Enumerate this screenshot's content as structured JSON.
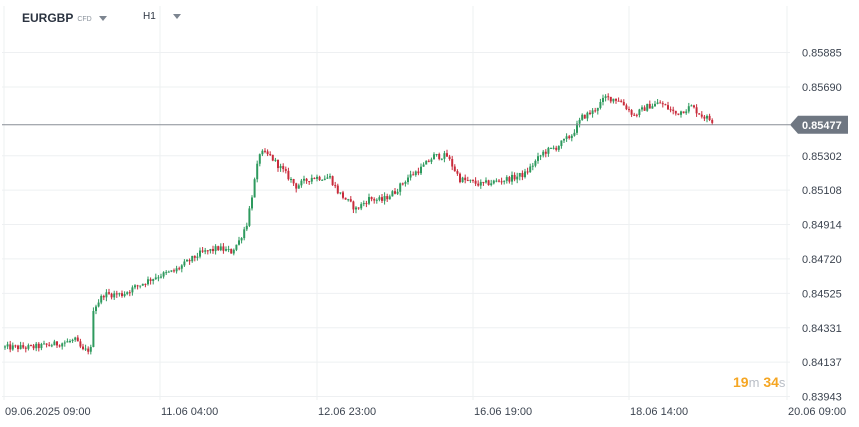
{
  "toolbar": {
    "symbol": "EURGBP",
    "symbol_type": "CFD",
    "timeframe": "H1"
  },
  "countdown": {
    "minutes": "19",
    "minutes_unit": "m",
    "seconds": "34",
    "seconds_unit": "s"
  },
  "colors": {
    "up": "#2e9a5e",
    "down": "#c92b3b",
    "grid": "#eef0f2",
    "price_line": "#888e96",
    "price_tag": "#6f7782",
    "countdown": "#f5a623"
  },
  "chart_data": {
    "type": "candlestick",
    "symbol": "EURGBP",
    "timeframe": "H1",
    "last_price": "0.85477",
    "y_ticks": [
      "0.85885",
      "0.85690",
      "0.85302",
      "0.85108",
      "0.84914",
      "0.84720",
      "0.84525",
      "0.84331",
      "0.84137",
      "0.83943"
    ],
    "y_range": [
      0.83943,
      0.85885
    ],
    "x_ticks": [
      "09.06.2025  09:00",
      "11.06  04:00",
      "12.06  23:00",
      "16.06  19:00",
      "18.06  14:00",
      "20.06  09:00"
    ],
    "grid": true,
    "anchors": [
      [
        0,
        0.8422
      ],
      [
        10,
        0.8422
      ],
      [
        20,
        0.8424
      ],
      [
        27,
        0.8426
      ],
      [
        30,
        0.842
      ],
      [
        33,
        0.8421
      ],
      [
        34,
        0.8444
      ],
      [
        38,
        0.8452
      ],
      [
        45,
        0.8452
      ],
      [
        50,
        0.8456
      ],
      [
        58,
        0.8462
      ],
      [
        65,
        0.8465
      ],
      [
        75,
        0.8475
      ],
      [
        82,
        0.8478
      ],
      [
        87,
        0.8476
      ],
      [
        90,
        0.8482
      ],
      [
        93,
        0.8492
      ],
      [
        98,
        0.8532
      ],
      [
        102,
        0.853
      ],
      [
        108,
        0.852
      ],
      [
        112,
        0.8513
      ],
      [
        118,
        0.8518
      ],
      [
        125,
        0.8518
      ],
      [
        128,
        0.851
      ],
      [
        135,
        0.85
      ],
      [
        140,
        0.8506
      ],
      [
        145,
        0.8505
      ],
      [
        150,
        0.851
      ],
      [
        155,
        0.8518
      ],
      [
        160,
        0.8523
      ],
      [
        165,
        0.853
      ],
      [
        170,
        0.853
      ],
      [
        175,
        0.8517
      ],
      [
        183,
        0.8514
      ],
      [
        190,
        0.8516
      ],
      [
        196,
        0.8518
      ],
      [
        200,
        0.852
      ],
      [
        207,
        0.8532
      ],
      [
        212,
        0.8535
      ],
      [
        218,
        0.8542
      ],
      [
        222,
        0.8552
      ],
      [
        226,
        0.8555
      ],
      [
        231,
        0.8563
      ],
      [
        236,
        0.8562
      ],
      [
        242,
        0.8553
      ],
      [
        247,
        0.8558
      ],
      [
        252,
        0.856
      ],
      [
        258,
        0.8554
      ],
      [
        264,
        0.8558
      ],
      [
        268,
        0.8553
      ],
      [
        272,
        0.855
      ]
    ],
    "total_candles": 273
  }
}
